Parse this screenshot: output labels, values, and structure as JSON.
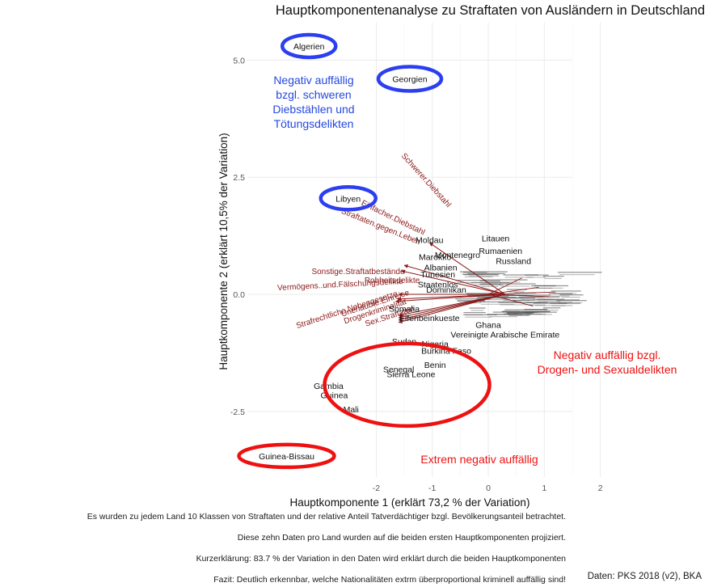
{
  "chart_data": {
    "type": "scatter",
    "title": "Hauptkomponentenanalyse zu Straftaten von Ausländern in Deutschland",
    "xlabel": "Hauptkomponente 1 (erklärt 73,2 % der Variation)",
    "ylabel": "Hauptkomponente 2 (erklärt 10,5% der Variation)",
    "xlim": [
      -4.3,
      1.5
    ],
    "ylim": [
      -3.9,
      5.8
    ],
    "x_ticks": [
      -2,
      -1,
      0,
      1,
      2
    ],
    "y_ticks": [
      -2.5,
      0.0,
      2.5,
      5.0
    ],
    "grid": true,
    "points": [
      {
        "label": "Algerien",
        "x": -3.2,
        "y": 5.3
      },
      {
        "label": "Georgien",
        "x": -1.4,
        "y": 4.6
      },
      {
        "label": "Libyen",
        "x": -2.5,
        "y": 2.05
      },
      {
        "label": "Moldau",
        "x": -1.05,
        "y": 1.17
      },
      {
        "label": "Litauen",
        "x": 0.13,
        "y": 1.2
      },
      {
        "label": "Rumaenien",
        "x": 0.22,
        "y": 0.93
      },
      {
        "label": "Montenegro",
        "x": -0.55,
        "y": 0.85
      },
      {
        "label": "Marokko",
        "x": -0.95,
        "y": 0.8
      },
      {
        "label": "Russland",
        "x": 0.45,
        "y": 0.72
      },
      {
        "label": "Albanien",
        "x": -0.85,
        "y": 0.58
      },
      {
        "label": "Tunesien",
        "x": -0.9,
        "y": 0.43
      },
      {
        "label": "Staatenlos",
        "x": -0.9,
        "y": 0.22
      },
      {
        "label": "Dominikan",
        "x": -0.75,
        "y": 0.1
      },
      {
        "label": "Somalia",
        "x": -1.5,
        "y": -0.3
      },
      {
        "label": "Elfenbeinkueste",
        "x": -1.05,
        "y": -0.5
      },
      {
        "label": "Ghana",
        "x": 0.0,
        "y": -0.65
      },
      {
        "label": "Vereinigte Arabische Emirate",
        "x": 0.3,
        "y": -0.85
      },
      {
        "label": "Sudan",
        "x": -1.5,
        "y": -1.0
      },
      {
        "label": "Nigeria",
        "x": -0.95,
        "y": -1.05
      },
      {
        "label": "Burkina Faso",
        "x": -0.75,
        "y": -1.2
      },
      {
        "label": "Benin",
        "x": -0.95,
        "y": -1.5
      },
      {
        "label": "Senegal",
        "x": -1.6,
        "y": -1.6
      },
      {
        "label": "Sierra Leone",
        "x": -1.38,
        "y": -1.7
      },
      {
        "label": "Gambia",
        "x": -2.85,
        "y": -1.95
      },
      {
        "label": "Guinea",
        "x": -2.75,
        "y": -2.15
      },
      {
        "label": "Mali",
        "x": -2.45,
        "y": -2.45
      },
      {
        "label": "Guinea-Bissau",
        "x": -3.6,
        "y": -3.45
      }
    ],
    "arrows": [
      {
        "label": "Schwerer.Diebstahl",
        "x": -1.05,
        "y": 1.1
      },
      {
        "label": "Einfacher.Diebstahl",
        "x": -1.5,
        "y": 0.62
      },
      {
        "label": "Straftaten.gegen.Leben",
        "x": -1.55,
        "y": 0.5
      },
      {
        "label": "Sonstige.Straftatbestände",
        "x": -1.6,
        "y": 0.0
      },
      {
        "label": "Rohheitsdelikte",
        "x": -1.62,
        "y": -0.1
      },
      {
        "label": "Vermögens..und.Fälschungsdelikte",
        "x": -1.65,
        "y": -0.15
      },
      {
        "label": "Unerlaubte.Einreise",
        "x": -1.6,
        "y": -0.45
      },
      {
        "label": "Strafrechtliche.Nebengesetze",
        "x": -1.6,
        "y": -0.5
      },
      {
        "label": "Drogenkriminalität",
        "x": -1.6,
        "y": -0.55
      },
      {
        "label": "Sex.Straftaten",
        "x": -1.6,
        "y": -0.6
      }
    ],
    "annotations": [
      {
        "text": "Negativ auffällig bzgl. schweren Diebstählen und Tötungsdelikten",
        "lines": [
          "Negativ auffällig",
          "bzgl. schweren",
          "Diebstählen und",
          "Tötungsdelikten"
        ],
        "color": "#2448e0"
      },
      {
        "text": "Negativ auffällig bzgl. Drogen- und Sexualdelikten",
        "lines": [
          "Negativ auffällig bzgl.",
          "Drogen- und Sexualdelikten"
        ],
        "color": "#ee1111"
      },
      {
        "text": "Extrem negativ auffällig",
        "lines": [
          "Extrem negativ auffällig"
        ],
        "color": "#ee1111"
      }
    ],
    "colors": {
      "blue_highlight": "#2b3ff0",
      "red_highlight": "#ee1111",
      "arrow": "#8b1a1a",
      "grid": "#ebebeb"
    }
  },
  "footer": {
    "line1": "Es wurden zu jedem Land 10 Klassen von Straftaten und der relative Anteil Tatverdächtiger bzgl. Bevölkerungsanteil betrachtet.",
    "line2": "Diese zehn Daten pro Land wurden auf die beiden ersten Hauptkomponenten projiziert.",
    "line3": "Kurzerklärung: 83.7 % der Variation in den Daten wird erklärt durch die beiden Hauptkomponenten",
    "line4": "Fazit: Deutlich erkennbar, welche Nationalitäten extrm überproportional kriminell auffällig sind!",
    "credit": "Daten: PKS 2018 (v2), BKA"
  }
}
